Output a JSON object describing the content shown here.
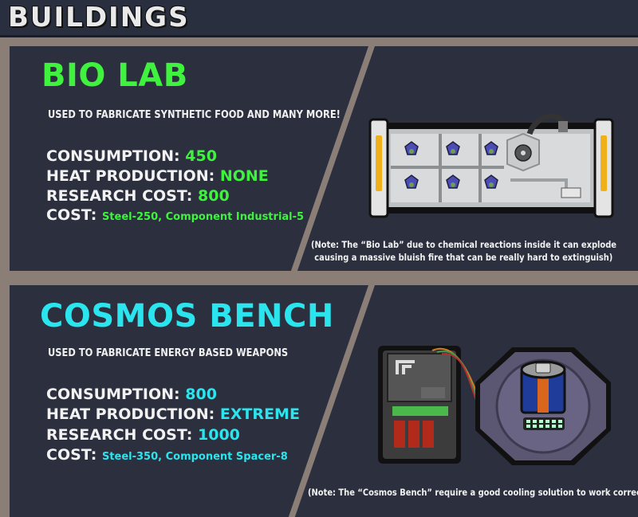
{
  "header": {
    "title": "BUILDINGS"
  },
  "buildings": [
    {
      "name": "BIO LAB",
      "description": "USED TO FABRICATE SYNTHETIC FOOD AND MANY MORE!",
      "consumption_label": "CONSUMPTION:",
      "consumption": "450",
      "heat_label": "HEAT PRODUCTION:",
      "heat": "NONE",
      "research_label": "RESEARCH COST:",
      "research": "800",
      "cost_label": "COST:",
      "cost": "Steel-250, Component Industrial-5",
      "note_line1": "(Note: The “Bio Lab” due to chemical reactions inside it can explode",
      "note_line2": "causing a massive bluish fire that can be really hard to extinguish)",
      "accent": "#3ef23e"
    },
    {
      "name": "COSMOS BENCH",
      "description": "USED TO FABRICATE ENERGY BASED WEAPONS",
      "consumption_label": "CONSUMPTION:",
      "consumption": "800",
      "heat_label": "HEAT PRODUCTION:",
      "heat": "EXTREME",
      "research_label": "RESEARCH COST:",
      "research": "1000",
      "cost_label": "COST:",
      "cost": "Steel-350, Component Spacer-8",
      "note": "(Note: The “Cosmos Bench” require a good cooling solution to work correctly)",
      "accent": "#2ae5ee"
    }
  ],
  "icons": [
    "bio-lab-building-icon",
    "cosmos-bench-building-icon",
    "biohazard-icon"
  ]
}
